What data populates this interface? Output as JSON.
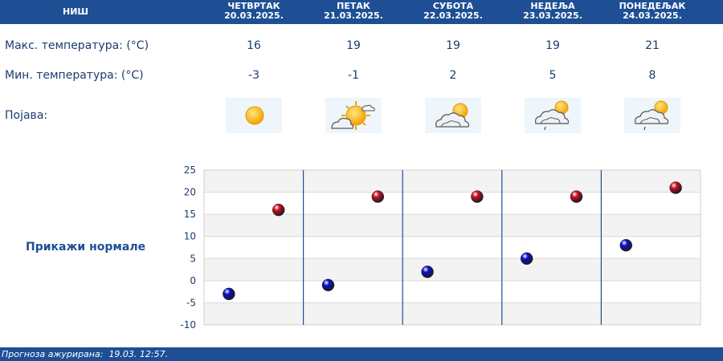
{
  "header": {
    "city": "НИШ",
    "days": [
      {
        "day": "ЧЕТВРТАК",
        "date": "20.03.2025."
      },
      {
        "day": "ПЕТАК",
        "date": "21.03.2025."
      },
      {
        "day": "СУБОТА",
        "date": "22.03.2025."
      },
      {
        "day": "НЕДЕЉА",
        "date": "23.03.2025."
      },
      {
        "day": "ПОНЕДЕЉАК",
        "date": "24.03.2025."
      }
    ]
  },
  "rows": {
    "max_label": "Макс. температура: (°C)",
    "min_label": "Мин. температура: (°C)",
    "phenomenon_label": "Појава:",
    "max_values": [
      "16",
      "19",
      "19",
      "19",
      "21"
    ],
    "min_values": [
      "-3",
      "-1",
      "2",
      "5",
      "8"
    ],
    "icons": [
      "sun-icon",
      "sun-cloud-icon",
      "cloud-sun-icon",
      "cloud-sun-drizzle-icon",
      "cloud-sun-drizzle-icon"
    ]
  },
  "normals_link": "Прикажи нормале",
  "chart_data": {
    "type": "scatter",
    "categories": [
      "20.03.2025.",
      "21.03.2025.",
      "22.03.2025.",
      "23.03.2025.",
      "24.03.2025."
    ],
    "series": [
      {
        "values": [
          -3,
          -1,
          2,
          5,
          8
        ],
        "color": "#0a10c8"
      },
      {
        "values": [
          16,
          19,
          19,
          19,
          21
        ],
        "color": "#d0101a"
      }
    ],
    "ylim": [
      -10,
      25
    ],
    "yticks": [
      "25",
      "20",
      "15",
      "10",
      "5",
      "0",
      "-5",
      "-10"
    ],
    "grid": true
  },
  "footer": {
    "label": "Прогноза ажурирана:",
    "value": "19.03. 12:57."
  },
  "colors": {
    "header_bg": "#1e4f95",
    "text": "#1a3d6e",
    "icon_bg": "#eef6fc"
  }
}
